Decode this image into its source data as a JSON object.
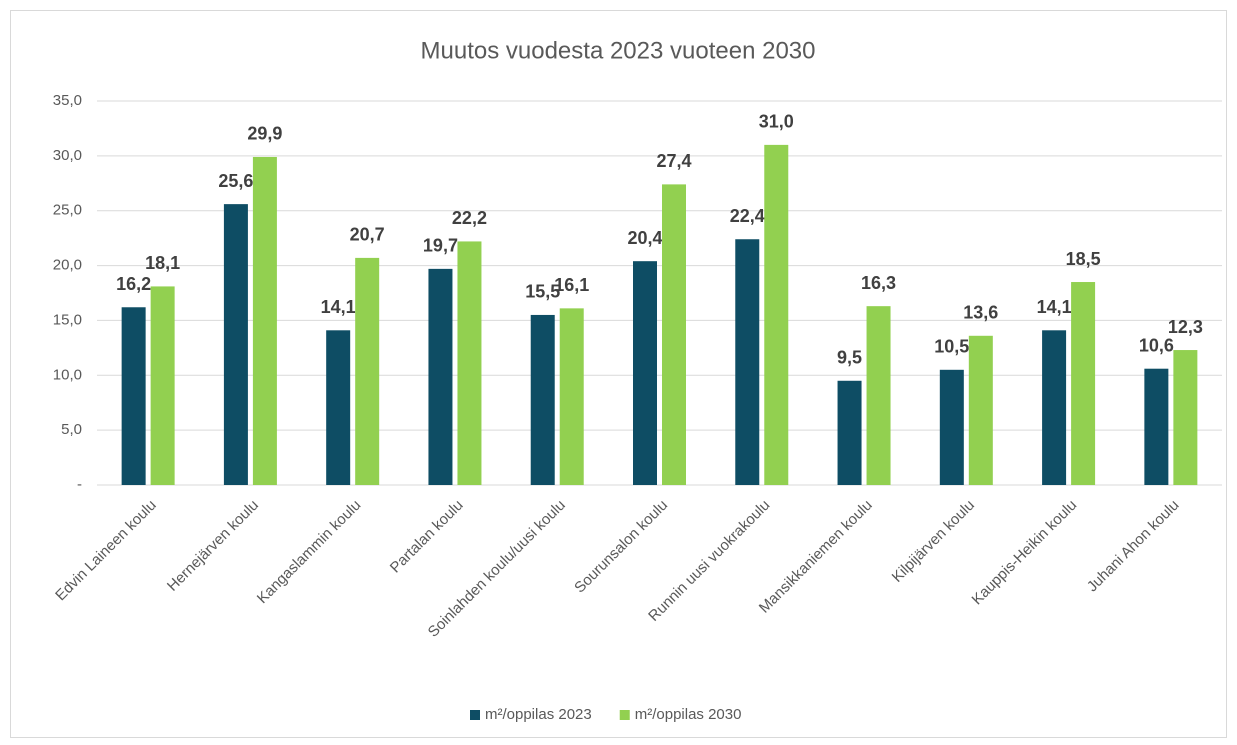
{
  "chart_data": {
    "type": "bar",
    "title": "Muutos vuodesta 2023 vuoteen 2030",
    "categories": [
      "Edvin Laineen koulu",
      "Hernejärven koulu",
      "Kangaslammin koulu",
      "Partalan koulu",
      "Soinlahden koulu/uusi koulu",
      "Sourunsalon koulu",
      "Runnin uusi vuokrakoulu",
      "Mansikkaniemen koulu",
      "Kilpijärven koulu",
      "Kauppis-Heikin koulu",
      "Juhani Ahon koulu"
    ],
    "series": [
      {
        "name": "m²/oppilas 2023",
        "color": "#0e4d64",
        "values": [
          16.2,
          25.6,
          14.1,
          19.7,
          15.5,
          20.4,
          22.4,
          9.5,
          10.5,
          14.1,
          10.6
        ],
        "value_labels": [
          "16,2",
          "25,6",
          "14,1",
          "19,7",
          "15,5",
          "20,4",
          "22,4",
          "9,5",
          "10,5",
          "14,1",
          "10,6"
        ]
      },
      {
        "name": "m²/oppilas 2030",
        "color": "#92d050",
        "values": [
          18.1,
          29.9,
          20.7,
          22.2,
          16.1,
          27.4,
          31.0,
          16.3,
          13.6,
          18.5,
          12.3
        ],
        "value_labels": [
          "18,1",
          "29,9",
          "20,7",
          "22,2",
          "16,1",
          "27,4",
          "31,0",
          "16,3",
          "13,6",
          "18,5",
          "12,3"
        ]
      }
    ],
    "ylim": [
      0,
      35
    ],
    "yticks": [
      {
        "value": 0,
        "label": "-"
      },
      {
        "value": 5,
        "label": "5,0"
      },
      {
        "value": 10,
        "label": "10,0"
      },
      {
        "value": 15,
        "label": "15,0"
      },
      {
        "value": 20,
        "label": "20,0"
      },
      {
        "value": 25,
        "label": "25,0"
      },
      {
        "value": 30,
        "label": "30,0"
      },
      {
        "value": 35,
        "label": "35,0"
      }
    ],
    "grid": true,
    "legend": "bottom"
  }
}
